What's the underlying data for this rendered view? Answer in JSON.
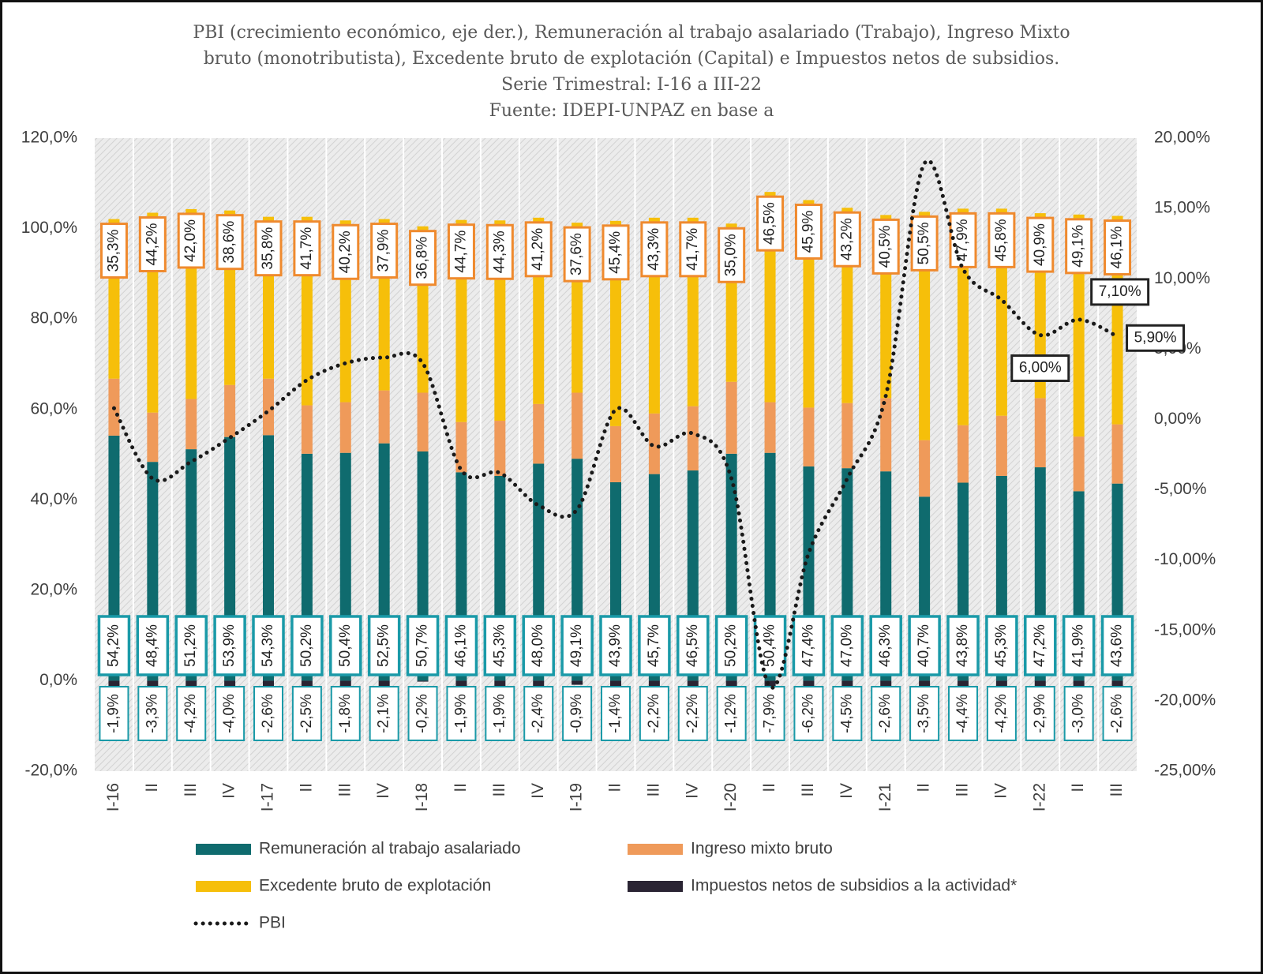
{
  "chart_data": {
    "type": "bar",
    "title": [
      "PBI (crecimiento económico, eje der.), Remuneración al trabajo asalariado (Trabajo), Ingreso Mixto",
      "bruto (monotributista), Excedente bruto de explotación (Capital) e Impuestos netos de subsidios."
    ],
    "subtitle": "Serie Trimestral: I-16 a III-22",
    "source": "Fuente: IDEPI-UNPAZ en base a",
    "categories": [
      "I-16",
      "II",
      "III",
      "IV",
      "I-17",
      "II",
      "III",
      "IV",
      "I-18",
      "II",
      "III",
      "IV",
      "I-19",
      "II",
      "III",
      "IV",
      "I-20",
      "II",
      "III",
      "IV",
      "I-21",
      "II",
      "III",
      "IV",
      "I-22",
      "II",
      "III"
    ],
    "ylim": [
      -20,
      120
    ],
    "yticks": [
      {
        "value": -20,
        "label": "-20,0%"
      },
      {
        "value": 0,
        "label": "0,0%"
      },
      {
        "value": 20,
        "label": "20,0%"
      },
      {
        "value": 40,
        "label": "40,0%"
      },
      {
        "value": 60,
        "label": "60,0%"
      },
      {
        "value": 80,
        "label": "80,0%"
      },
      {
        "value": 100,
        "label": "100,0%"
      },
      {
        "value": 120,
        "label": "120,0%"
      }
    ],
    "y2lim": [
      -25,
      20
    ],
    "y2ticks": [
      {
        "value": -25,
        "label": "-25,00%"
      },
      {
        "value": -20,
        "label": "-20,00%"
      },
      {
        "value": -15,
        "label": "-15,00%"
      },
      {
        "value": -10,
        "label": "-10,00%"
      },
      {
        "value": -5,
        "label": "-5,00%"
      },
      {
        "value": 0,
        "label": "0,00%"
      },
      {
        "value": 5,
        "label": "5,00%"
      },
      {
        "value": 10,
        "label": "10,00%"
      },
      {
        "value": 15,
        "label": "15,00%"
      },
      {
        "value": 20,
        "label": "20,00%"
      }
    ],
    "series": [
      {
        "name": "Remuneración al trabajo asalariado",
        "color": "#0f6b6e",
        "values": [
          54.2,
          48.4,
          51.2,
          53.9,
          54.3,
          50.2,
          50.4,
          52.5,
          50.7,
          46.1,
          45.3,
          48.0,
          49.1,
          43.9,
          45.7,
          46.5,
          50.2,
          50.4,
          47.4,
          47.0,
          46.3,
          40.7,
          43.8,
          45.3,
          47.2,
          41.9,
          43.6
        ],
        "value_labels": [
          "54,2%",
          "48,4%",
          "51,2%",
          "53,9%",
          "54,3%",
          "50,2%",
          "50,4%",
          "52,5%",
          "50,7%",
          "46,1%",
          "45,3%",
          "48,0%",
          "49,1%",
          "43,9%",
          "45,7%",
          "46,5%",
          "50,2%",
          "50,4%",
          "47,4%",
          "47,0%",
          "46,3%",
          "40,7%",
          "43,8%",
          "45,3%",
          "47,2%",
          "41,9%",
          "43,6%"
        ]
      },
      {
        "name": "Ingreso mixto bruto",
        "color": "#ef9a5a",
        "values": [
          12.6,
          10.9,
          11.1,
          11.5,
          12.5,
          10.7,
          11.2,
          11.7,
          13.0,
          11.1,
          12.2,
          13.2,
          14.6,
          12.4,
          13.4,
          14.2,
          15.9,
          11.2,
          13.0,
          14.4,
          16.2,
          12.5,
          12.7,
          13.3,
          15.3,
          12.1,
          13.1
        ]
      },
      {
        "name": "Excedente bruto de explotación",
        "color": "#f6bf0a",
        "values": [
          35.3,
          44.2,
          42.0,
          38.6,
          35.8,
          41.7,
          40.2,
          37.9,
          36.8,
          44.7,
          44.3,
          41.2,
          37.6,
          45.4,
          43.3,
          41.7,
          35.0,
          46.5,
          45.9,
          43.2,
          40.5,
          50.5,
          47.9,
          45.8,
          40.9,
          49.1,
          46.1
        ],
        "value_labels": [
          "35,3%",
          "44,2%",
          "42,0%",
          "38,6%",
          "35,8%",
          "41,7%",
          "40,2%",
          "37,9%",
          "36,8%",
          "44,7%",
          "44,3%",
          "41,2%",
          "37,6%",
          "45,4%",
          "43,3%",
          "41,7%",
          "35,0%",
          "46,5%",
          "45,9%",
          "43,2%",
          "40,5%",
          "50,5%",
          "47,9%",
          "45,8%",
          "40,9%",
          "49,1%",
          "46,1%"
        ]
      },
      {
        "name": "Impuestos netos de subsidios a la actividad*",
        "color": "#2a2433",
        "values": [
          -1.9,
          -3.3,
          -4.2,
          -4.0,
          -2.6,
          -2.5,
          -1.8,
          -2.1,
          -0.2,
          -1.9,
          -1.9,
          -2.4,
          -0.9,
          -1.4,
          -2.2,
          -2.2,
          -1.2,
          -7.9,
          -6.2,
          -4.5,
          -2.6,
          -3.5,
          -4.4,
          -4.2,
          -2.9,
          -3.0,
          -2.6
        ],
        "value_labels": [
          "-1,9%",
          "-3,3%",
          "-4,2%",
          "-4,0%",
          "-2,6%",
          "-2,5%",
          "-1,8%",
          "-2,1%",
          "-0,2%",
          "-1,9%",
          "-1,9%",
          "-2,4%",
          "-0,9%",
          "-1,4%",
          "-2,2%",
          "-2,2%",
          "-1,2%",
          "-7,9%",
          "-6,2%",
          "-4,5%",
          "-2,6%",
          "-3,5%",
          "-4,4%",
          "-4,2%",
          "-2,9%",
          "-3,0%",
          "-2,6%"
        ]
      },
      {
        "name": "PBI",
        "type": "line",
        "axis": "y2",
        "color": "#1a1a1a",
        "values": [
          0.8,
          -4.2,
          -3.0,
          -1.3,
          0.6,
          2.8,
          4.0,
          4.4,
          4.0,
          -3.6,
          -3.8,
          -6.1,
          -6.4,
          0.7,
          -1.9,
          -1.0,
          -4.2,
          -19.0,
          -9.5,
          -4.2,
          1.7,
          18.2,
          10.7,
          8.5,
          6.0,
          7.1,
          5.9
        ],
        "value_labels": [
          null,
          null,
          null,
          null,
          null,
          null,
          null,
          null,
          null,
          null,
          null,
          null,
          null,
          null,
          null,
          null,
          null,
          null,
          null,
          null,
          null,
          null,
          null,
          null,
          "6,00%",
          "7,10%",
          "5,90%"
        ]
      }
    ]
  }
}
